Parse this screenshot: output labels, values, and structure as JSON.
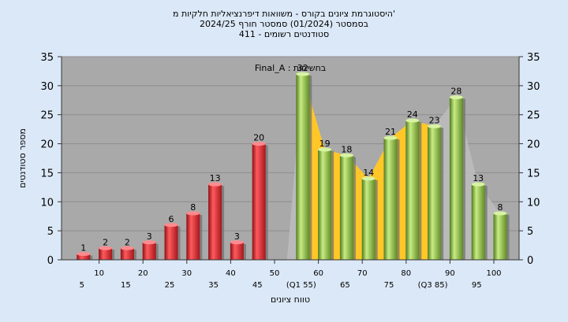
{
  "chart_data": {
    "type": "bar",
    "title_lines": [
      "היסטוגרמת ציונים בקורס - משוואות דיפרנציאליות חלקיות מ'",
      "בסמסטר  (01/2024)  סמסטר חורף  2024/25",
      "411 - סטודנטים רשומים"
    ],
    "xlabel": "טווח ציונים",
    "ylabel": "מספר סטודנטים",
    "annotation": "Final_A : בחשיחות",
    "ylim": [
      0,
      35
    ],
    "yticks": [
      0,
      5,
      10,
      15,
      20,
      25,
      30,
      35
    ],
    "grid": true,
    "x_tick_labels_upper": [
      "10",
      "20",
      "30",
      "40",
      "50",
      "60",
      "70",
      "80",
      "90",
      "100"
    ],
    "x_tick_labels_lower": [
      "5",
      "15",
      "25",
      "35",
      "45",
      "(Q1 55)",
      "65",
      "75",
      "(Q3 85)",
      "95"
    ],
    "categories": [
      "5",
      "10",
      "15",
      "20",
      "25",
      "30",
      "35",
      "40",
      "45",
      "55",
      "60",
      "65",
      "70",
      "75",
      "80",
      "85",
      "90",
      "95",
      "100"
    ],
    "values": [
      1,
      2,
      2,
      3,
      6,
      8,
      13,
      3,
      20,
      32,
      19,
      18,
      14,
      21,
      24,
      23,
      28,
      13,
      8
    ],
    "value_labels": [
      "1",
      "2",
      "2",
      "3",
      "6",
      "8",
      "13",
      "3",
      "20",
      "32",
      "19",
      "18",
      "14",
      "21",
      "24",
      "23",
      "28",
      "13",
      "8"
    ],
    "bar_colors": [
      "#d9262d",
      "#d9262d",
      "#d9262d",
      "#d9262d",
      "#d9262d",
      "#d9262d",
      "#d9262d",
      "#d9262d",
      "#d9262d",
      "#8ab43e",
      "#8ab43e",
      "#8ab43e",
      "#8ab43e",
      "#8ab43e",
      "#8ab43e",
      "#8ab43e",
      "#8ab43e",
      "#8ab43e",
      "#8ab43e"
    ],
    "quartile_band": {
      "color": "#ffc727",
      "x": [
        55,
        60,
        65,
        70,
        75,
        80,
        85
      ],
      "values": [
        32,
        19,
        18,
        14,
        21,
        24,
        23
      ]
    },
    "background_area": {
      "color": "#bdbdbd",
      "x": [
        55,
        60,
        65,
        70,
        75,
        80,
        85,
        90,
        95,
        100
      ],
      "values": [
        32,
        19,
        18,
        14,
        21,
        24,
        23,
        28,
        13,
        8
      ]
    },
    "plot_background": "#a9a9a9"
  }
}
